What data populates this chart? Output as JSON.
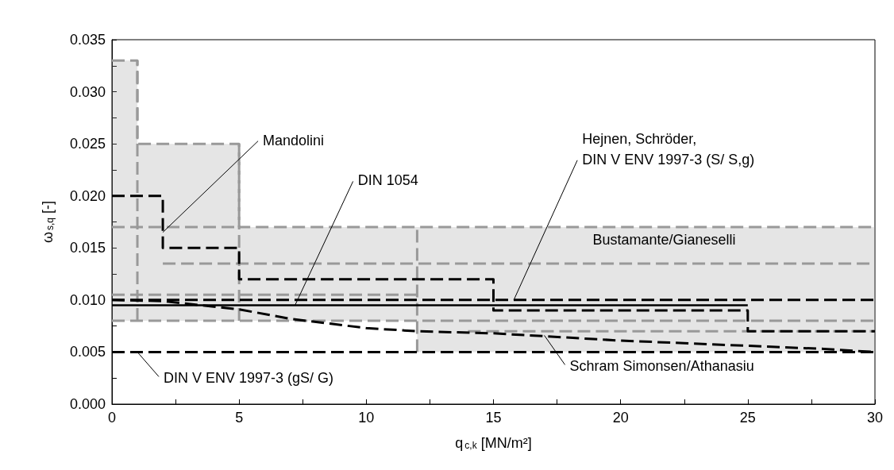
{
  "chart_data": {
    "type": "line",
    "xlabel": "q$_{c,k}$ [MN/m²]",
    "ylabel": "ω$_{s,q}$ [-]",
    "marker": "none",
    "xlim": [
      0,
      30
    ],
    "ylim": [
      0,
      0.035
    ],
    "xticks": [
      0,
      {
        "value": 2.5,
        "label": null
      },
      5,
      {
        "value": 7.5,
        "label": null
      },
      10,
      {
        "value": 12.5,
        "label": null
      },
      15,
      {
        "value": 17.5,
        "label": null
      },
      20,
      {
        "value": 22.5,
        "label": null
      },
      25,
      {
        "value": 27.5,
        "label": null
      },
      30
    ],
    "yticks": [
      {
        "value": 0,
        "label": "0.000"
      },
      {
        "value": 0.0025,
        "label": null
      },
      {
        "value": 0.005,
        "label": "0.005"
      },
      {
        "value": 0.0075,
        "label": null
      },
      {
        "value": 0.01,
        "label": "0.010"
      },
      {
        "value": 0.0125,
        "label": null
      },
      {
        "value": 0.015,
        "label": "0.015"
      },
      {
        "value": 0.0175,
        "label": null
      },
      {
        "value": 0.02,
        "label": "0.020"
      },
      {
        "value": 0.0225,
        "label": null
      },
      {
        "value": 0.025,
        "label": "0.025"
      },
      {
        "value": 0.0275,
        "label": null
      },
      {
        "value": 0.03,
        "label": "0.030"
      },
      {
        "value": 0.0325,
        "label": null
      },
      {
        "value": 0.035,
        "label": "0.035"
      }
    ],
    "series": [
      {
        "color": "#999999",
        "line_style": "dashed",
        "x": [
          0,
          1,
          1,
          5,
          5,
          12,
          12,
          30
        ],
        "values": [
          0.033,
          0.033,
          0.025,
          0.025,
          0.017,
          0.017,
          0.017,
          0.017
        ],
        "upper": [
          0.033,
          0.033,
          0.025,
          0.025,
          0.017,
          0.017,
          0.017,
          0.017
        ],
        "lower": [
          0.008,
          0.008,
          0.008,
          0.008,
          0.008,
          0.008,
          0.005,
          0.005
        ]
      },
      {
        "color": "#999999",
        "line_style": "dashed",
        "x": [
          0,
          5
        ],
        "values": [
          0.017,
          0.017
        ]
      },
      {
        "color": "#999999",
        "line_style": "dashed",
        "x": [
          1,
          1
        ],
        "values": [
          0.008,
          0.033
        ]
      },
      {
        "color": "#999999",
        "line_style": "dashed",
        "x": [
          5,
          5
        ],
        "values": [
          0.008,
          0.025
        ]
      },
      {
        "color": "#999999",
        "line_style": "dashed",
        "x": [
          12,
          12
        ],
        "values": [
          0.005,
          0.017
        ]
      },
      {
        "color": "#999999",
        "line_style": "dashed",
        "x": [
          2,
          30
        ],
        "values": [
          0.0135,
          0.0135
        ]
      },
      {
        "color": "#999999",
        "line_style": "dashed",
        "x": [
          0,
          12
        ],
        "values": [
          0.0105,
          0.0105
        ]
      },
      {
        "color": "#999999",
        "line_style": "dashed",
        "x": [
          0,
          30
        ],
        "values": [
          0.008,
          0.008
        ]
      },
      {
        "color": "#999999",
        "line_style": "dashed",
        "x": [
          14,
          30
        ],
        "values": [
          0.007,
          0.007
        ]
      },
      {
        "type": "step",
        "color": "#000000",
        "line_style": "dashed",
        "x": [
          0,
          2,
          5,
          15,
          25,
          30
        ],
        "values": [
          0.02,
          0.015,
          0.012,
          0.009,
          0.007,
          0.007
        ]
      },
      {
        "color": "#000000",
        "line_style": "dashed",
        "x": [
          0,
          30
        ],
        "values": [
          0.01,
          0.01
        ]
      },
      {
        "color": "#000000",
        "line_style": "dashed",
        "x": [
          0,
          30
        ],
        "values": [
          0.005,
          0.005
        ]
      },
      {
        "color": "#000000",
        "line_style": "solid",
        "x": [
          0,
          25
        ],
        "values": [
          0.0095,
          0.0095
        ]
      },
      {
        "color": "#000000",
        "line_style": "dashed",
        "x": [
          0,
          2,
          5,
          7,
          10,
          12,
          15,
          20,
          25,
          28,
          30
        ],
        "values": [
          0.01,
          0.0099,
          0.0091,
          0.0082,
          0.0073,
          0.007,
          0.0068,
          0.0061,
          0.0056,
          0.0053,
          0.005
        ]
      }
    ],
    "annotations": [
      {
        "text": "Mandolini",
        "x": 2,
        "y": 0.0165
      },
      {
        "text": "DIN 1054",
        "x": 7.2,
        "y": 0.0095
      },
      {
        "text": "Hejnen, Schröder,\nDIN V ENV 1997-3 (S/ S,g)",
        "x": 15.8,
        "y": 0.01
      },
      {
        "text": "Schram Simonsen/Athanasiu",
        "x": 17,
        "y": 0.0066
      },
      {
        "text": "DIN V ENV 1997-3 (gS/ G)",
        "x": 1,
        "y": 0.005
      },
      "Bustamante/Gianeselli"
    ]
  }
}
